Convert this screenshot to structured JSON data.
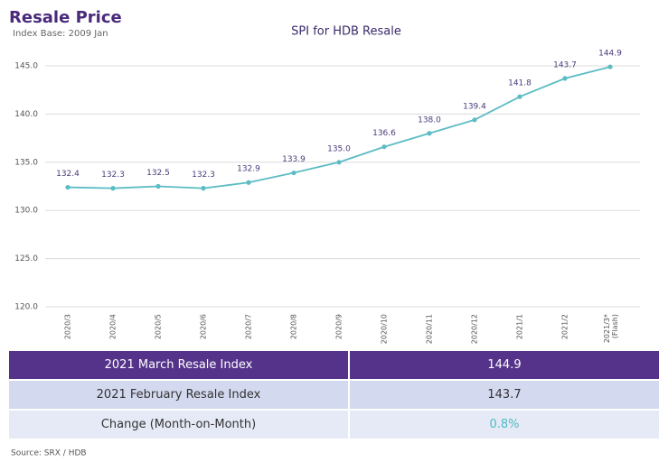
{
  "header": {
    "title": "Resale Price",
    "subtitle": "Index Base: 2009 Jan"
  },
  "chart_data": {
    "type": "line",
    "title": "SPI for HDB Resale",
    "categories": [
      "2020/3",
      "2020/4",
      "2020/5",
      "2020/6",
      "2020/7",
      "2020/8",
      "2020/9",
      "2020/10",
      "2020/11",
      "2020/12",
      "2021/1",
      "2021/2",
      "2021/3* (Flash)"
    ],
    "values": [
      132.4,
      132.3,
      132.5,
      132.3,
      132.9,
      133.9,
      135.0,
      136.6,
      138.0,
      139.4,
      141.8,
      143.7,
      144.9
    ],
    "value_labels": [
      "132.4",
      "132.3",
      "132.5",
      "132.3",
      "132.9",
      "133.9",
      "135.0",
      "136.6",
      "138.0",
      "139.4",
      "141.8",
      "143.7",
      "144.9"
    ],
    "color": "#5bbcc4",
    "ylim": [
      120,
      145
    ],
    "yticks": [
      {
        "value": 120,
        "label": "120.0"
      },
      {
        "value": 125,
        "label": "125.0"
      },
      {
        "value": 130,
        "label": "130.0"
      },
      {
        "value": 135,
        "label": "135.0"
      },
      {
        "value": 140,
        "label": "140.0"
      },
      {
        "value": 145,
        "label": "145.0"
      }
    ],
    "grid": true
  },
  "table": {
    "rows": [
      [
        "2021 March Resale Index",
        "144.9"
      ],
      [
        "2021 February Resale Index",
        "143.7"
      ],
      [
        "Change (Month-on-Month)",
        "0.8%"
      ]
    ]
  },
  "source": "Source: SRX / HDB"
}
